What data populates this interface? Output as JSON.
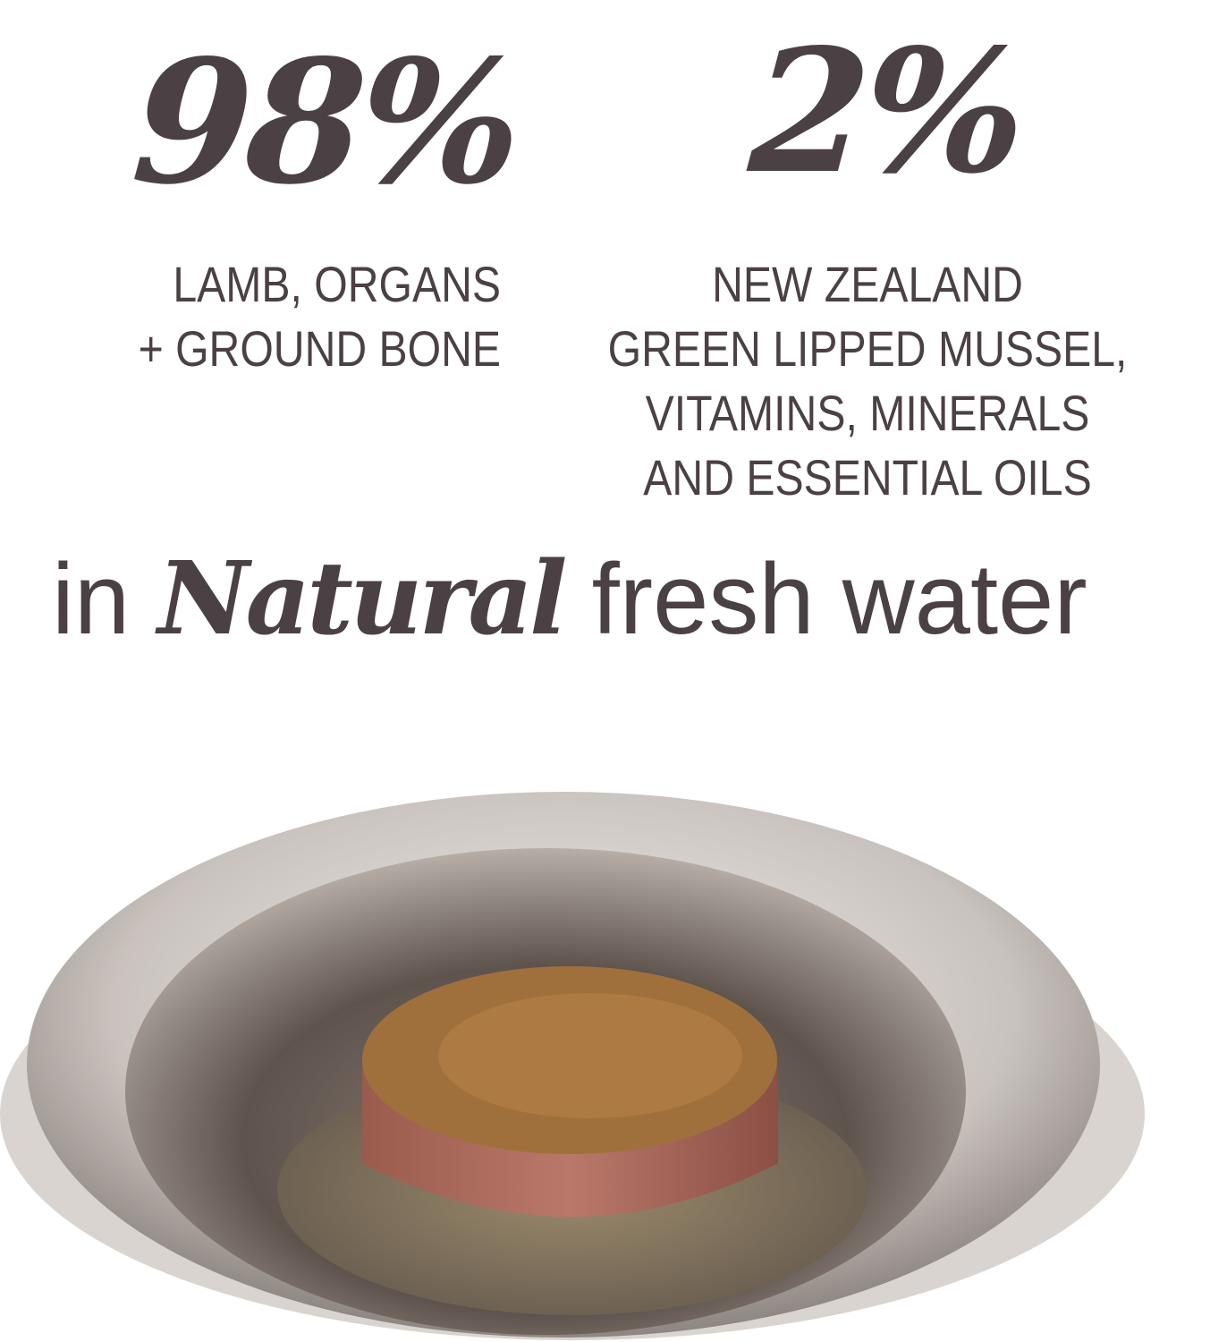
{
  "stats": [
    {
      "value": "98%",
      "description_lines": [
        "LAMB, ORGANS",
        "+ GROUND BONE"
      ]
    },
    {
      "value": "2%",
      "description_lines": [
        "NEW ZEALAND",
        "GREEN LIPPED MUSSEL,",
        "VITAMINS, MINERALS",
        "AND ESSENTIAL OILS"
      ]
    }
  ],
  "tagline": {
    "prefix": "in",
    "emphasis": "Natural",
    "suffix": "fresh water"
  },
  "colors": {
    "text": "#4b4043",
    "background": "#ffffff"
  },
  "image": "stainless-steel-bowl-with-lamb-food-loaf"
}
